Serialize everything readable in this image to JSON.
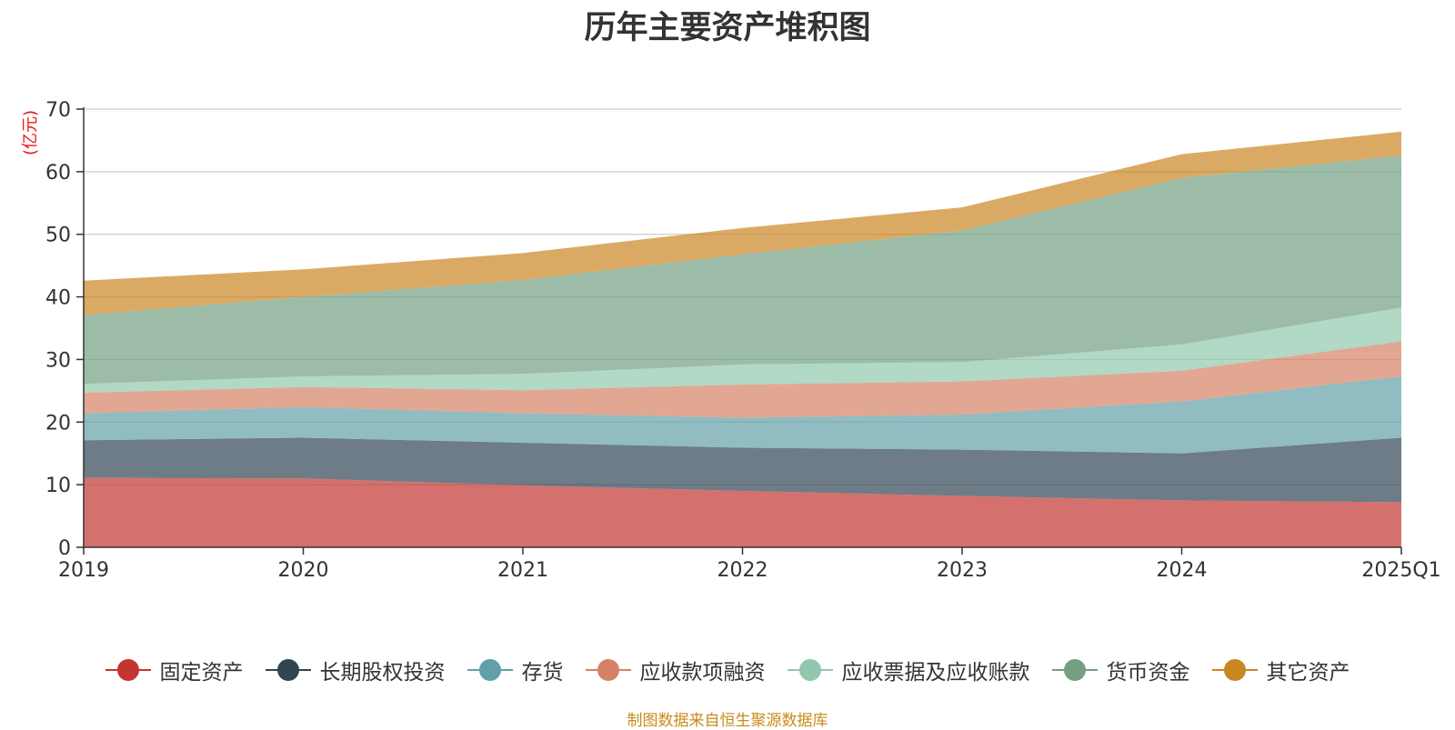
{
  "chart_data": {
    "type": "area",
    "stacked": true,
    "title": "历年主要资产堆积图",
    "ylabel": "(亿元)",
    "xlabel": "",
    "categories": [
      "2019",
      "2020",
      "2021",
      "2022",
      "2023",
      "2024",
      "2025Q1"
    ],
    "y_ticks": [
      "0",
      "10",
      "20",
      "30",
      "40",
      "50",
      "60",
      "70"
    ],
    "ylim": [
      0,
      70
    ],
    "grid": true,
    "legend_position": "bottom",
    "series": [
      {
        "name": "固定资产",
        "color": "#c23531",
        "values": [
          11.1,
          11.0,
          9.9,
          9.0,
          8.2,
          7.5,
          7.2
        ]
      },
      {
        "name": "长期股权投资",
        "color": "#2f4554",
        "values": [
          6.0,
          6.5,
          6.8,
          6.9,
          7.4,
          7.5,
          10.3
        ]
      },
      {
        "name": "存货",
        "color": "#61a0a8",
        "values": [
          4.3,
          4.9,
          4.7,
          4.8,
          5.6,
          8.3,
          9.8
        ]
      },
      {
        "name": "应收款项融资",
        "color": "#d48265",
        "values": [
          3.3,
          3.2,
          3.7,
          5.3,
          5.3,
          4.9,
          5.6
        ]
      },
      {
        "name": "应收票据及应收账款",
        "color": "#91c7ae",
        "values": [
          1.4,
          1.7,
          2.6,
          3.2,
          3.1,
          4.2,
          5.4
        ]
      },
      {
        "name": "货币资金",
        "color": "#749f83",
        "values": [
          11.0,
          12.7,
          15.0,
          17.6,
          21.0,
          26.6,
          24.3
        ]
      },
      {
        "name": "其它资产",
        "color": "#ca8622",
        "values": [
          5.5,
          4.4,
          4.3,
          4.2,
          3.7,
          3.8,
          3.8
        ]
      }
    ]
  },
  "footer": {
    "source": "制图数据来自恒生聚源数据库"
  }
}
